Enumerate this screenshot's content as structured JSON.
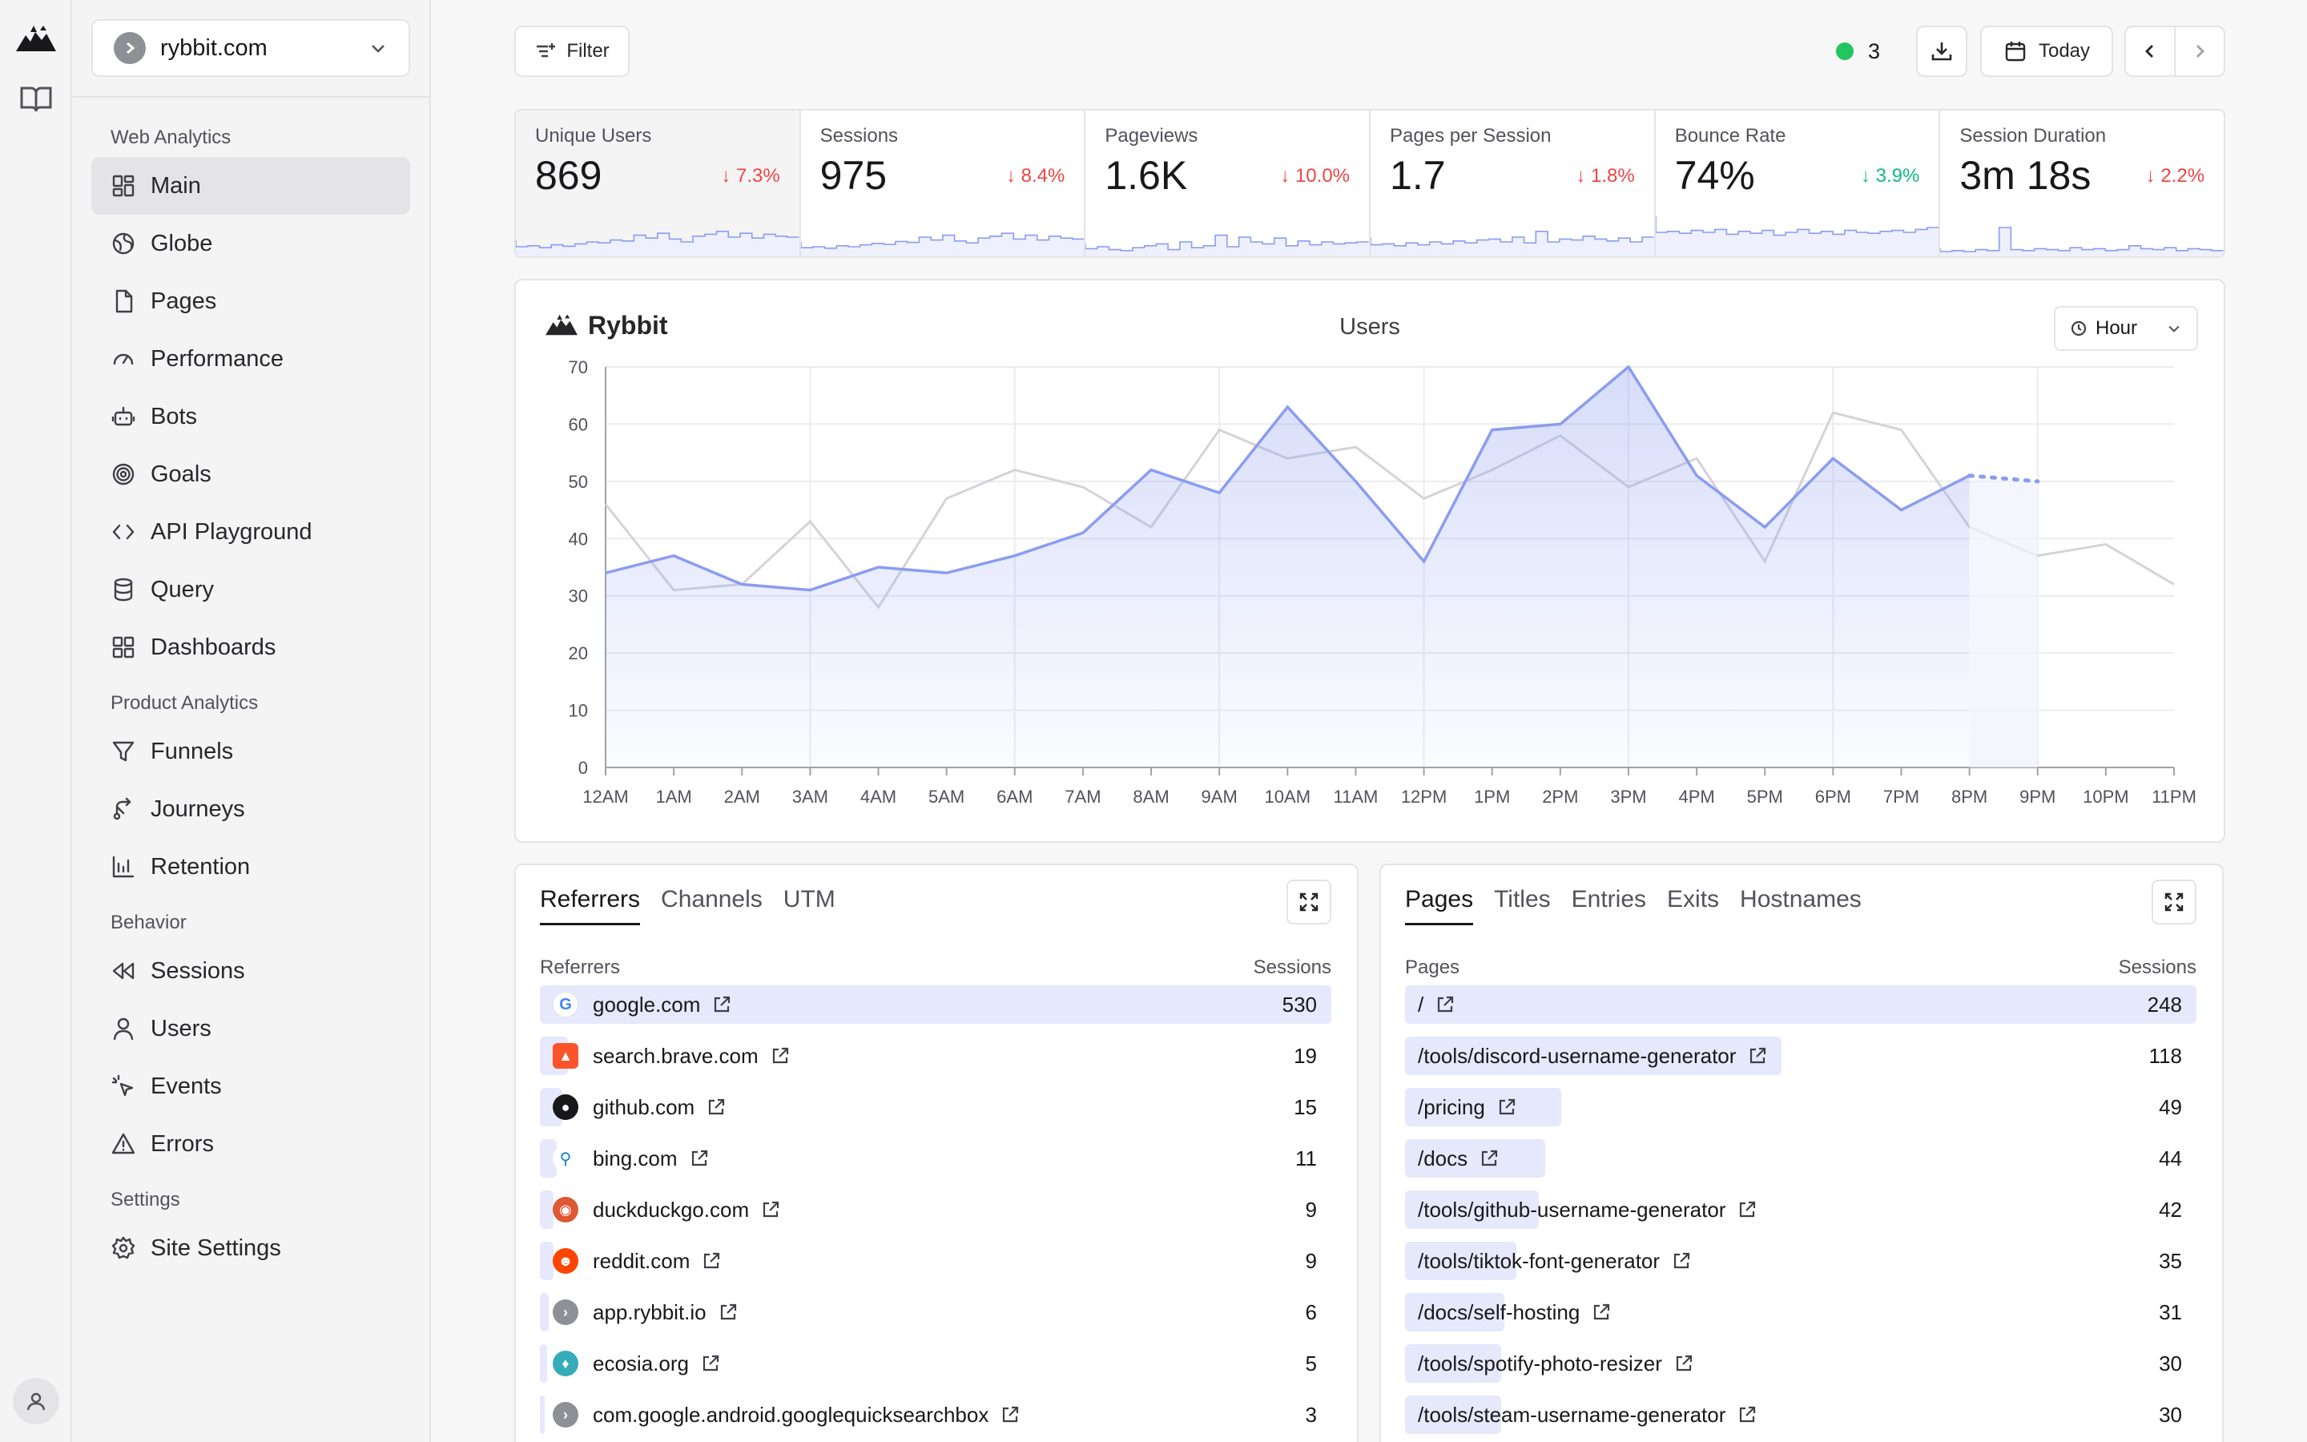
{
  "app": {
    "site_name": "rybbit.com"
  },
  "sidebar": {
    "sections": [
      {
        "title": "Web Analytics",
        "items": [
          {
            "label": "Main",
            "icon": "dashboard-icon",
            "active": true
          },
          {
            "label": "Globe",
            "icon": "globe-icon"
          },
          {
            "label": "Pages",
            "icon": "file-icon"
          },
          {
            "label": "Performance",
            "icon": "gauge-icon"
          },
          {
            "label": "Bots",
            "icon": "bot-icon"
          },
          {
            "label": "Goals",
            "icon": "target-icon"
          },
          {
            "label": "API Playground",
            "icon": "code-icon"
          },
          {
            "label": "Query",
            "icon": "database-icon"
          },
          {
            "label": "Dashboards",
            "icon": "grid-icon"
          }
        ]
      },
      {
        "title": "Product Analytics",
        "items": [
          {
            "label": "Funnels",
            "icon": "funnel-icon"
          },
          {
            "label": "Journeys",
            "icon": "route-icon"
          },
          {
            "label": "Retention",
            "icon": "bar-chart-icon"
          }
        ]
      },
      {
        "title": "Behavior",
        "items": [
          {
            "label": "Sessions",
            "icon": "rewind-icon"
          },
          {
            "label": "Users",
            "icon": "user-icon"
          },
          {
            "label": "Events",
            "icon": "pointer-icon"
          },
          {
            "label": "Errors",
            "icon": "warning-icon"
          }
        ]
      },
      {
        "title": "Settings",
        "items": [
          {
            "label": "Site Settings",
            "icon": "gear-icon"
          }
        ]
      }
    ]
  },
  "toolbar": {
    "filter_label": "Filter",
    "live_count": "3",
    "date_label": "Today"
  },
  "stats": [
    {
      "label": "Unique Users",
      "value": "869",
      "change": "7.3%",
      "direction": "down"
    },
    {
      "label": "Sessions",
      "value": "975",
      "change": "8.4%",
      "direction": "down"
    },
    {
      "label": "Pageviews",
      "value": "1.6K",
      "change": "10.0%",
      "direction": "down"
    },
    {
      "label": "Pages per Session",
      "value": "1.7",
      "change": "1.8%",
      "direction": "down"
    },
    {
      "label": "Bounce Rate",
      "value": "74%",
      "change": "3.9%",
      "direction": "up"
    },
    {
      "label": "Session Duration",
      "value": "3m 18s",
      "change": "2.2%",
      "direction": "down"
    }
  ],
  "chart_card": {
    "brand": "Rybbit",
    "title": "Users",
    "granularity": "Hour"
  },
  "chart_data": {
    "type": "area",
    "title": "Users",
    "categories": [
      "12AM",
      "1AM",
      "2AM",
      "3AM",
      "4AM",
      "5AM",
      "6AM",
      "7AM",
      "8AM",
      "9AM",
      "10AM",
      "11AM",
      "12PM",
      "1PM",
      "2PM",
      "3PM",
      "4PM",
      "5PM",
      "6PM",
      "7PM",
      "8PM",
      "9PM",
      "10PM",
      "11PM"
    ],
    "ylim": [
      0,
      70
    ],
    "yticks": [
      0,
      10,
      20,
      30,
      40,
      50,
      60,
      70
    ],
    "grid": true,
    "series": [
      {
        "values": [
          34,
          37,
          32,
          31,
          35,
          34,
          37,
          41,
          52,
          48,
          63,
          50,
          36,
          59,
          60,
          70,
          51,
          42,
          54,
          45,
          51,
          null,
          null,
          null
        ],
        "color": "#8b9cf0"
      },
      {
        "values": [
          46,
          31,
          32,
          43,
          28,
          47,
          52,
          49,
          42,
          59,
          54,
          56,
          47,
          52,
          58,
          49,
          54,
          36,
          62,
          59,
          42,
          37,
          39,
          32
        ],
        "color": "#d4d4d8"
      }
    ],
    "projection": {
      "from_value": 51,
      "to_value": 50
    }
  },
  "referrers_panel": {
    "tabs": [
      "Referrers",
      "Channels",
      "UTM"
    ],
    "col_left": "Referrers",
    "col_right": "Sessions",
    "rows": [
      {
        "label": "google.com",
        "value": "530",
        "icon": "google-icon"
      },
      {
        "label": "search.brave.com",
        "value": "19",
        "icon": "brave-icon"
      },
      {
        "label": "github.com",
        "value": "15",
        "icon": "github-icon"
      },
      {
        "label": "bing.com",
        "value": "11",
        "icon": "bing-icon"
      },
      {
        "label": "duckduckgo.com",
        "value": "9",
        "icon": "duckduckgo-icon"
      },
      {
        "label": "reddit.com",
        "value": "9",
        "icon": "reddit-icon"
      },
      {
        "label": "app.rybbit.io",
        "value": "6",
        "icon": "rybbit-icon"
      },
      {
        "label": "ecosia.org",
        "value": "5",
        "icon": "ecosia-icon"
      },
      {
        "label": "com.google.android.googlequicksearchbox",
        "value": "3",
        "icon": "android-icon"
      }
    ]
  },
  "pages_panel": {
    "tabs": [
      "Pages",
      "Titles",
      "Entries",
      "Exits",
      "Hostnames"
    ],
    "col_left": "Pages",
    "col_right": "Sessions",
    "rows": [
      {
        "label": "/",
        "value": "248"
      },
      {
        "label": "/tools/discord-username-generator",
        "value": "118"
      },
      {
        "label": "/pricing",
        "value": "49"
      },
      {
        "label": "/docs",
        "value": "44"
      },
      {
        "label": "/tools/github-username-generator",
        "value": "42"
      },
      {
        "label": "/tools/tiktok-font-generator",
        "value": "35"
      },
      {
        "label": "/docs/self-hosting",
        "value": "31"
      },
      {
        "label": "/tools/spotify-photo-resizer",
        "value": "30"
      },
      {
        "label": "/tools/steam-username-generator",
        "value": "30"
      }
    ]
  }
}
